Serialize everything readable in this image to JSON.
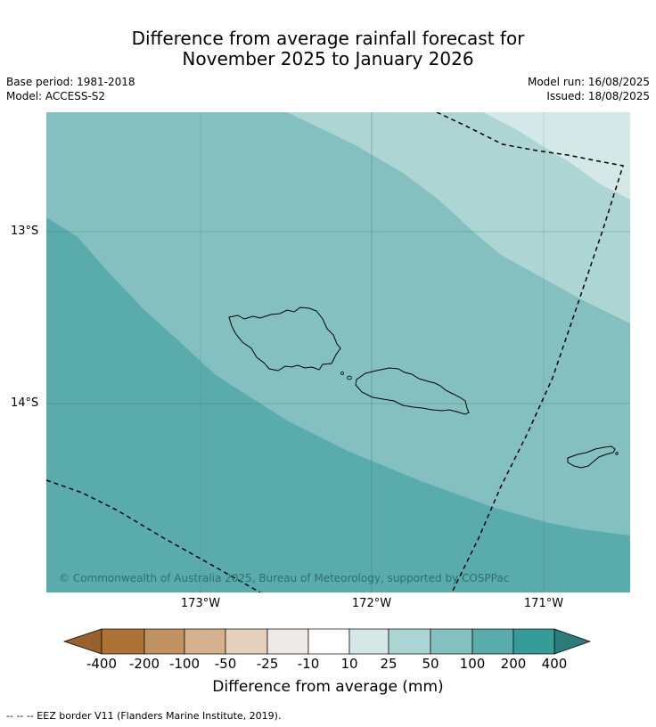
{
  "title": {
    "line1": "Difference from average rainfall forecast for",
    "line2": "November 2025 to January 2026"
  },
  "meta": {
    "base_period": "Base period: 1981-2018",
    "model": "Model: ACCESS-S2",
    "model_run": "Model run: 16/08/2025",
    "issued": "Issued: 18/08/2025"
  },
  "map": {
    "copyright": "© Commonwealth of Australia 2025, Bureau of Meteorology, supported by COSPPac",
    "lat_labels": [
      "13°S",
      "14°S"
    ],
    "lon_labels": [
      "173°W",
      "172°W",
      "171°W"
    ],
    "border_style": "dashed",
    "zone_colors": {
      "c_10_25": "#d3e8e7",
      "c_25_50": "#acd5d4",
      "c_50_100": "#84c0bf",
      "c_100_200": "#5aabab"
    },
    "coastline_color": "#000000"
  },
  "colorbar": {
    "label": "Difference from average (mm)",
    "ticks": [
      "-400",
      "-200",
      "-100",
      "-50",
      "-25",
      "-10",
      "10",
      "25",
      "50",
      "100",
      "200",
      "400"
    ],
    "colors": [
      "#ae7239",
      "#c09262",
      "#d4b18f",
      "#e5cfbd",
      "#eeeae7",
      "#ffffff",
      "#d3e8e7",
      "#acd5d4",
      "#84c0bf",
      "#5aabab",
      "#359c9a"
    ],
    "extend_low_color": "#98612e",
    "extend_high_color": "#2b7b7a"
  },
  "footnote": "--  --  -- EEZ border V11 (Flanders Marine Institute, 2019)."
}
